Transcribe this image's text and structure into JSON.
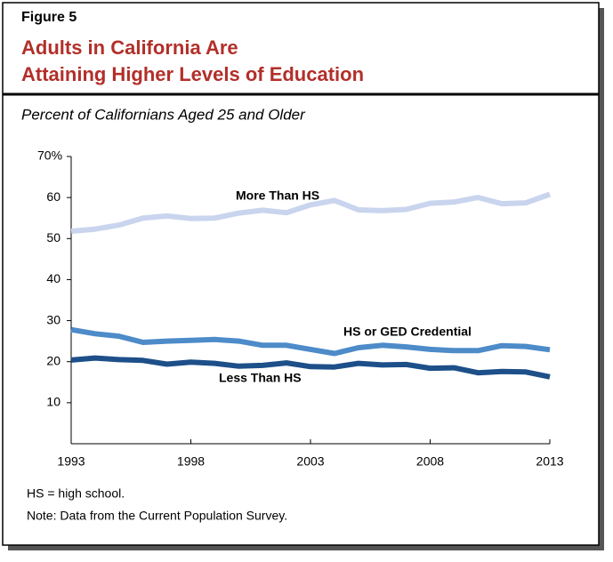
{
  "chart_data": {
    "type": "line",
    "figure_label": "Figure 5",
    "title": [
      "Adults in California Are",
      "Attaining Higher Levels of Education"
    ],
    "subtitle": "Percent of Californians Aged 25 and Older",
    "x": [
      1993,
      1994,
      1995,
      1996,
      1997,
      1998,
      1999,
      2000,
      2001,
      2002,
      2003,
      2004,
      2005,
      2006,
      2007,
      2008,
      2009,
      2010,
      2011,
      2012,
      2013
    ],
    "xlim": [
      1993,
      2013
    ],
    "xticks": [
      1993,
      1998,
      2003,
      2008,
      2013
    ],
    "ylim": [
      0,
      70
    ],
    "yticks": [
      10,
      20,
      30,
      40,
      50,
      60,
      {
        "value": 70,
        "label": "70%"
      }
    ],
    "series": [
      {
        "name": "More Than HS",
        "color": "#c9d4ee",
        "values": [
          51.8,
          52.3,
          53.3,
          55.0,
          55.5,
          54.9,
          55.0,
          56.2,
          56.9,
          56.3,
          58.2,
          59.3,
          57.0,
          56.8,
          57.1,
          58.6,
          58.9,
          60.0,
          58.5,
          58.7,
          60.8
        ]
      },
      {
        "name": "HS or GED Credential",
        "color": "#4d8bc9",
        "values": [
          27.8,
          26.8,
          26.2,
          24.7,
          25.0,
          25.2,
          25.4,
          25.0,
          24.0,
          24.0,
          23.0,
          22.0,
          23.4,
          24.0,
          23.6,
          23.0,
          22.7,
          22.7,
          23.9,
          23.7,
          22.9
        ]
      },
      {
        "name": "Less Than HS",
        "color": "#1d4f89",
        "values": [
          20.4,
          20.9,
          20.5,
          20.3,
          19.4,
          19.9,
          19.6,
          18.9,
          19.1,
          19.7,
          18.8,
          18.7,
          19.6,
          19.2,
          19.3,
          18.4,
          18.5,
          17.3,
          17.6,
          17.5,
          16.3
        ]
      }
    ],
    "notes": [
      "HS = high school.",
      "Note: Data from the Current Population Survey."
    ]
  }
}
